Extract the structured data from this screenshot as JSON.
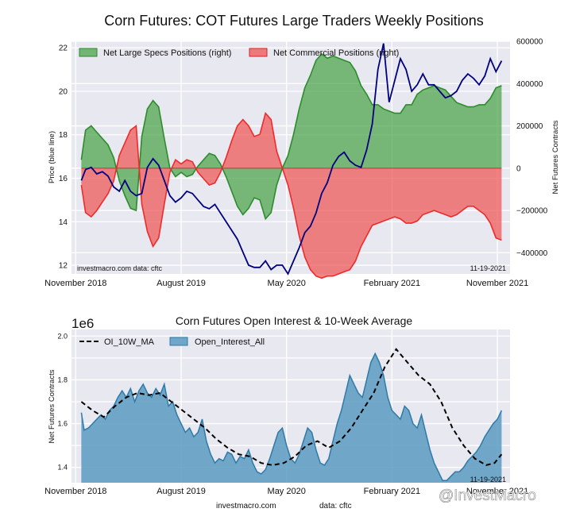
{
  "chart_data": [
    {
      "type": "area",
      "title": "Corn Futures: COT Futures Large Traders Weekly Positions",
      "ylabel_left": "Price (blue line)",
      "ylabel_right": "Net Futures Contracts",
      "ylim_left": [
        11.6,
        22.3
      ],
      "ylim_right": [
        -500000,
        600000
      ],
      "xlim": [
        2018.8,
        2021.92
      ],
      "x_ticks": [
        {
          "x": 2018.83,
          "label": "November 2018"
        },
        {
          "x": 2019.58,
          "label": "August 2019"
        },
        {
          "x": 2020.33,
          "label": "May 2020"
        },
        {
          "x": 2021.08,
          "label": "February 2021"
        },
        {
          "x": 2021.83,
          "label": "November 2021"
        }
      ],
      "y_ticks_left": [
        12,
        14,
        16,
        18,
        20,
        22
      ],
      "y_ticks_right": [
        -400000,
        -200000,
        0,
        200000,
        400000,
        600000
      ],
      "y_tick_labels_right": [
        "−400000",
        "−200000",
        "0",
        "200000",
        "400000",
        "600000"
      ],
      "legend_placement": "top-left",
      "annotation_left": "investmacro.com   data: cftc",
      "annotation_right": "11-19-2021",
      "series": [
        {
          "name": "Net Large Specs Positions (right)",
          "color": "#4aa34a",
          "x": [
            2018.87,
            2018.9,
            2018.94,
            2018.98,
            2019.02,
            2019.06,
            2019.1,
            2019.14,
            2019.18,
            2019.22,
            2019.26,
            2019.3,
            2019.34,
            2019.38,
            2019.42,
            2019.46,
            2019.5,
            2019.54,
            2019.58,
            2019.62,
            2019.66,
            2019.7,
            2019.74,
            2019.78,
            2019.82,
            2019.86,
            2019.9,
            2019.94,
            2019.98,
            2020.02,
            2020.06,
            2020.1,
            2020.14,
            2020.18,
            2020.22,
            2020.26,
            2020.3,
            2020.34,
            2020.38,
            2020.42,
            2020.46,
            2020.5,
            2020.54,
            2020.58,
            2020.62,
            2020.66,
            2020.7,
            2020.74,
            2020.78,
            2020.82,
            2020.86,
            2020.9,
            2020.94,
            2020.98,
            2021.02,
            2021.06,
            2021.1,
            2021.14,
            2021.18,
            2021.22,
            2021.26,
            2021.3,
            2021.34,
            2021.38,
            2021.42,
            2021.46,
            2021.5,
            2021.54,
            2021.58,
            2021.62,
            2021.66,
            2021.7,
            2021.74,
            2021.78,
            2021.82,
            2021.86
          ],
          "values": [
            40000,
            180000,
            200000,
            170000,
            140000,
            110000,
            50000,
            -60000,
            -130000,
            -190000,
            -200000,
            150000,
            280000,
            320000,
            290000,
            140000,
            0,
            -40000,
            -20000,
            -40000,
            -30000,
            10000,
            40000,
            70000,
            60000,
            20000,
            -40000,
            -110000,
            -180000,
            -220000,
            -190000,
            -140000,
            -150000,
            -240000,
            -210000,
            -80000,
            0,
            60000,
            160000,
            280000,
            380000,
            440000,
            510000,
            540000,
            520000,
            530000,
            520000,
            510000,
            500000,
            460000,
            390000,
            350000,
            300000,
            300000,
            280000,
            270000,
            260000,
            260000,
            300000,
            300000,
            350000,
            370000,
            380000,
            390000,
            380000,
            370000,
            340000,
            310000,
            300000,
            290000,
            290000,
            300000,
            300000,
            330000,
            380000,
            390000
          ]
        },
        {
          "name": "Net Commercial Positions (right)",
          "color": "#ee5555",
          "x": [
            2018.87,
            2018.9,
            2018.94,
            2018.98,
            2019.02,
            2019.06,
            2019.1,
            2019.14,
            2019.18,
            2019.22,
            2019.26,
            2019.3,
            2019.34,
            2019.38,
            2019.42,
            2019.46,
            2019.5,
            2019.54,
            2019.58,
            2019.62,
            2019.66,
            2019.7,
            2019.74,
            2019.78,
            2019.82,
            2019.86,
            2019.9,
            2019.94,
            2019.98,
            2020.02,
            2020.06,
            2020.1,
            2020.14,
            2020.18,
            2020.22,
            2020.26,
            2020.3,
            2020.34,
            2020.38,
            2020.42,
            2020.46,
            2020.5,
            2020.54,
            2020.58,
            2020.62,
            2020.66,
            2020.7,
            2020.74,
            2020.78,
            2020.82,
            2020.86,
            2020.9,
            2020.94,
            2020.98,
            2021.02,
            2021.06,
            2021.1,
            2021.14,
            2021.18,
            2021.22,
            2021.26,
            2021.3,
            2021.34,
            2021.38,
            2021.42,
            2021.46,
            2021.5,
            2021.54,
            2021.58,
            2021.62,
            2021.66,
            2021.7,
            2021.74,
            2021.78,
            2021.82,
            2021.86
          ],
          "values": [
            -80000,
            -210000,
            -230000,
            -200000,
            -160000,
            -120000,
            -60000,
            60000,
            120000,
            180000,
            200000,
            -170000,
            -300000,
            -370000,
            -330000,
            -170000,
            -20000,
            40000,
            20000,
            40000,
            30000,
            -20000,
            -50000,
            -80000,
            -70000,
            -20000,
            50000,
            130000,
            200000,
            230000,
            200000,
            150000,
            160000,
            260000,
            230000,
            80000,
            0,
            -80000,
            -190000,
            -320000,
            -420000,
            -480000,
            -510000,
            -520000,
            -510000,
            -510000,
            -500000,
            -490000,
            -480000,
            -440000,
            -370000,
            -320000,
            -270000,
            -260000,
            -250000,
            -240000,
            -230000,
            -240000,
            -260000,
            -260000,
            -250000,
            -220000,
            -210000,
            -200000,
            -210000,
            -220000,
            -230000,
            -220000,
            -200000,
            -180000,
            -180000,
            -200000,
            -220000,
            -260000,
            -330000,
            -340000
          ]
        },
        {
          "name": "Price",
          "color": "#00007f",
          "x": [
            2018.87,
            2018.9,
            2018.94,
            2018.98,
            2019.02,
            2019.06,
            2019.1,
            2019.14,
            2019.18,
            2019.22,
            2019.26,
            2019.3,
            2019.34,
            2019.38,
            2019.42,
            2019.46,
            2019.5,
            2019.54,
            2019.58,
            2019.62,
            2019.66,
            2019.7,
            2019.74,
            2019.78,
            2019.82,
            2019.86,
            2019.9,
            2019.94,
            2019.98,
            2020.02,
            2020.06,
            2020.1,
            2020.14,
            2020.18,
            2020.22,
            2020.26,
            2020.3,
            2020.34,
            2020.38,
            2020.42,
            2020.46,
            2020.5,
            2020.54,
            2020.58,
            2020.62,
            2020.66,
            2020.7,
            2020.74,
            2020.78,
            2020.82,
            2020.86,
            2020.9,
            2020.94,
            2020.98,
            2021.02,
            2021.06,
            2021.1,
            2021.14,
            2021.18,
            2021.22,
            2021.26,
            2021.3,
            2021.34,
            2021.38,
            2021.42,
            2021.46,
            2021.5,
            2021.54,
            2021.58,
            2021.62,
            2021.66,
            2021.7,
            2021.74,
            2021.78,
            2021.82,
            2021.86
          ],
          "values": [
            15.9,
            16.4,
            16.5,
            16.2,
            16.3,
            16.1,
            15.6,
            15.4,
            15.9,
            15.4,
            15.2,
            15.3,
            16.5,
            16.9,
            16.6,
            15.9,
            15.2,
            14.9,
            15.1,
            15.4,
            15.3,
            15.0,
            14.7,
            14.6,
            14.8,
            14.4,
            14.0,
            13.6,
            13.2,
            12.6,
            12.0,
            11.9,
            11.9,
            12.2,
            11.8,
            12.0,
            12.0,
            11.6,
            12.2,
            12.8,
            13.5,
            13.8,
            14.4,
            15.3,
            15.8,
            16.6,
            17.0,
            17.2,
            16.8,
            16.6,
            16.5,
            17.3,
            18.5,
            21.0,
            22.2,
            19.5,
            20.5,
            21.5,
            21.0,
            20.0,
            20.3,
            20.8,
            20.3,
            20.3,
            20.0,
            19.7,
            19.8,
            20.0,
            20.5,
            20.8,
            20.6,
            20.3,
            20.7,
            21.5,
            20.9,
            21.4
          ]
        }
      ]
    },
    {
      "type": "area",
      "title": "Corn Futures Open Interest & 10-Week Average",
      "ylabel": "Net Futures Contracts",
      "y_multiplier": "1e6",
      "ylim": [
        1.33,
        2.03
      ],
      "xlim": [
        2018.8,
        2021.92
      ],
      "x_ticks": [
        {
          "x": 2018.83,
          "label": "November 2018"
        },
        {
          "x": 2019.58,
          "label": "August 2019"
        },
        {
          "x": 2020.33,
          "label": "May 2020"
        },
        {
          "x": 2021.08,
          "label": "February 2021"
        },
        {
          "x": 2021.83,
          "label": "November 2021"
        }
      ],
      "y_ticks": [
        1.4,
        1.6,
        1.8,
        2.0
      ],
      "y_tick_labels": [
        "1.4",
        "1.6",
        "1.8",
        "2.0"
      ],
      "legend_placement": "top-left",
      "annotation_right": "11-19-2021",
      "footer": [
        "investmacro.com",
        "data: cftc"
      ],
      "series": [
        {
          "name": "Open_Interest_All",
          "color": "#5b9abf",
          "x": [
            2018.87,
            2018.89,
            2018.92,
            2018.95,
            2018.98,
            2019.01,
            2019.04,
            2019.07,
            2019.1,
            2019.13,
            2019.16,
            2019.19,
            2019.22,
            2019.25,
            2019.28,
            2019.31,
            2019.34,
            2019.37,
            2019.4,
            2019.43,
            2019.46,
            2019.49,
            2019.52,
            2019.55,
            2019.58,
            2019.61,
            2019.64,
            2019.67,
            2019.7,
            2019.73,
            2019.76,
            2019.79,
            2019.82,
            2019.85,
            2019.88,
            2019.91,
            2019.94,
            2019.97,
            2020.0,
            2020.03,
            2020.06,
            2020.09,
            2020.12,
            2020.15,
            2020.18,
            2020.21,
            2020.24,
            2020.27,
            2020.3,
            2020.33,
            2020.36,
            2020.39,
            2020.42,
            2020.45,
            2020.48,
            2020.51,
            2020.54,
            2020.57,
            2020.6,
            2020.63,
            2020.66,
            2020.69,
            2020.72,
            2020.75,
            2020.78,
            2020.81,
            2020.84,
            2020.87,
            2020.9,
            2020.93,
            2020.96,
            2020.99,
            2021.02,
            2021.05,
            2021.08,
            2021.11,
            2021.14,
            2021.17,
            2021.2,
            2021.23,
            2021.26,
            2021.29,
            2021.32,
            2021.35,
            2021.38,
            2021.41,
            2021.44,
            2021.47,
            2021.5,
            2021.53,
            2021.56,
            2021.59,
            2021.62,
            2021.65,
            2021.68,
            2021.71,
            2021.74,
            2021.77,
            2021.8,
            2021.83,
            2021.86
          ],
          "values": [
            1.65,
            1.57,
            1.58,
            1.6,
            1.62,
            1.64,
            1.62,
            1.66,
            1.68,
            1.72,
            1.75,
            1.72,
            1.76,
            1.7,
            1.75,
            1.78,
            1.74,
            1.72,
            1.76,
            1.73,
            1.78,
            1.68,
            1.7,
            1.64,
            1.6,
            1.56,
            1.58,
            1.54,
            1.56,
            1.62,
            1.52,
            1.46,
            1.42,
            1.44,
            1.43,
            1.47,
            1.46,
            1.42,
            1.45,
            1.44,
            1.48,
            1.42,
            1.38,
            1.37,
            1.39,
            1.44,
            1.5,
            1.56,
            1.58,
            1.5,
            1.44,
            1.42,
            1.46,
            1.52,
            1.58,
            1.56,
            1.48,
            1.42,
            1.41,
            1.44,
            1.52,
            1.6,
            1.66,
            1.74,
            1.82,
            1.78,
            1.74,
            1.72,
            1.8,
            1.88,
            1.92,
            1.88,
            1.82,
            1.72,
            1.66,
            1.64,
            1.62,
            1.68,
            1.66,
            1.6,
            1.58,
            1.64,
            1.56,
            1.48,
            1.42,
            1.38,
            1.34,
            1.34,
            1.36,
            1.38,
            1.38,
            1.4,
            1.43,
            1.45,
            1.47,
            1.5,
            1.54,
            1.57,
            1.6,
            1.62,
            1.66
          ]
        },
        {
          "name": "OI_10W_MA",
          "color": "#000000",
          "x": [
            2018.87,
            2018.95,
            2019.03,
            2019.11,
            2019.19,
            2019.27,
            2019.35,
            2019.43,
            2019.51,
            2019.59,
            2019.67,
            2019.75,
            2019.83,
            2019.91,
            2019.99,
            2020.07,
            2020.15,
            2020.23,
            2020.31,
            2020.39,
            2020.47,
            2020.55,
            2020.63,
            2020.71,
            2020.79,
            2020.87,
            2020.95,
            2021.03,
            2021.11,
            2021.19,
            2021.27,
            2021.35,
            2021.43,
            2021.51,
            2021.59,
            2021.67,
            2021.75,
            2021.81,
            2021.86
          ],
          "values": [
            1.7,
            1.66,
            1.63,
            1.68,
            1.72,
            1.74,
            1.73,
            1.74,
            1.7,
            1.66,
            1.62,
            1.58,
            1.53,
            1.49,
            1.46,
            1.45,
            1.42,
            1.41,
            1.42,
            1.45,
            1.5,
            1.52,
            1.49,
            1.52,
            1.58,
            1.66,
            1.74,
            1.86,
            1.94,
            1.88,
            1.82,
            1.78,
            1.7,
            1.58,
            1.5,
            1.44,
            1.41,
            1.42,
            1.46
          ]
        }
      ]
    },
    {
      "type": "other",
      "watermark": "@InvestMacro"
    }
  ]
}
